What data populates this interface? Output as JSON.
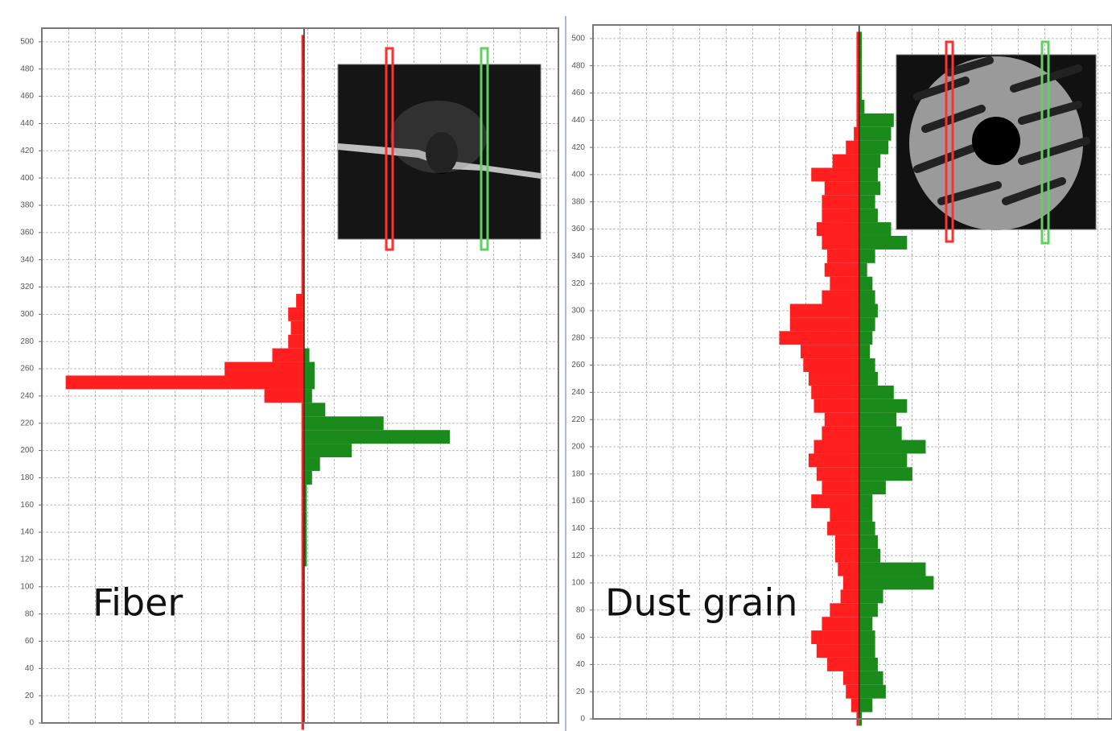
{
  "chart_data": [
    {
      "type": "bar",
      "orientation": "horizontal",
      "annotation": "Fiber",
      "y": [
        0,
        10,
        20,
        30,
        40,
        50,
        60,
        70,
        80,
        90,
        100,
        110,
        120,
        130,
        140,
        150,
        160,
        170,
        180,
        190,
        200,
        210,
        220,
        230,
        240,
        250,
        260,
        270,
        280,
        290,
        300,
        310,
        320,
        330,
        340,
        350,
        360,
        370,
        380,
        390,
        400,
        410,
        420,
        430,
        440,
        450,
        460,
        470,
        480,
        490,
        500
      ],
      "series": [
        {
          "color": "#ff1f1f",
          "values": [
            -0.1,
            -0.1,
            -0.1,
            -0.1,
            -0.1,
            -0.1,
            -0.1,
            -0.1,
            -0.1,
            -0.1,
            -0.1,
            -0.1,
            -0.1,
            -0.1,
            -0.1,
            -0.1,
            -0.1,
            -0.1,
            -0.1,
            -0.1,
            -0.1,
            -0.1,
            -0.1,
            -0.1,
            -1.5,
            -9.0,
            -3.0,
            -1.2,
            -0.6,
            -0.5,
            -0.6,
            -0.3,
            -0.1,
            -0.1,
            -0.1,
            -0.1,
            -0.1,
            -0.1,
            -0.1,
            -0.1,
            -0.1,
            -0.1,
            -0.1,
            -0.1,
            -0.1,
            -0.1,
            -0.1,
            -0.1,
            -0.1,
            -0.1,
            -0.1
          ]
        },
        {
          "color": "#1a8a1a",
          "values": [
            0,
            0,
            0,
            0,
            0,
            0,
            0,
            0,
            0,
            0,
            0,
            0,
            0.1,
            0.1,
            0.1,
            0.1,
            0.1,
            0.1,
            0.3,
            0.6,
            1.8,
            5.5,
            3.0,
            0.8,
            0.3,
            0.4,
            0.4,
            0.2,
            0,
            0,
            0,
            0,
            0,
            0,
            0,
            0,
            0,
            0,
            0,
            0,
            0,
            0,
            0,
            0,
            0,
            0,
            0,
            0,
            0,
            0,
            0
          ]
        }
      ],
      "xlim": [
        -9.9,
        9.6
      ],
      "ylim": [
        0,
        510
      ],
      "yticks": [
        0,
        20,
        40,
        60,
        80,
        100,
        120,
        140,
        160,
        180,
        200,
        220,
        240,
        260,
        280,
        300,
        320,
        340,
        360,
        380,
        400,
        420,
        440,
        460,
        480,
        500
      ],
      "grid": true
    },
    {
      "type": "bar",
      "orientation": "horizontal",
      "annotation": "Dust grain",
      "y": [
        0,
        10,
        20,
        30,
        40,
        50,
        60,
        70,
        80,
        90,
        100,
        110,
        120,
        130,
        140,
        150,
        160,
        170,
        180,
        190,
        200,
        210,
        220,
        230,
        240,
        250,
        260,
        270,
        280,
        290,
        300,
        310,
        320,
        330,
        340,
        350,
        360,
        370,
        380,
        390,
        400,
        410,
        420,
        430,
        440,
        450,
        460,
        470,
        480,
        490,
        500
      ],
      "series": [
        {
          "color": "#ff1f1f",
          "values": [
            -0.1,
            -0.3,
            -0.5,
            -0.6,
            -1.2,
            -1.6,
            -1.8,
            -1.4,
            -1.1,
            -0.7,
            -0.6,
            -0.8,
            -0.9,
            -0.9,
            -1.2,
            -1.1,
            -1.8,
            -1.4,
            -1.6,
            -1.9,
            -1.7,
            -1.4,
            -1.3,
            -1.7,
            -1.8,
            -1.9,
            -2.1,
            -2.2,
            -3.0,
            -2.6,
            -2.6,
            -1.4,
            -1.1,
            -1.3,
            -1.2,
            -1.4,
            -1.6,
            -1.4,
            -1.4,
            -1.3,
            -1.8,
            -1.0,
            -0.5,
            -0.2,
            -0.1,
            -0.1,
            -0.1,
            -0.1,
            -0.1,
            -0.1,
            -0.1
          ]
        },
        {
          "color": "#1a8a1a",
          "values": [
            0.1,
            0.5,
            1.0,
            0.9,
            0.7,
            0.6,
            0.6,
            0.5,
            0.7,
            0.9,
            2.8,
            2.5,
            0.8,
            0.7,
            0.6,
            0.5,
            0.5,
            1.0,
            2.0,
            1.8,
            2.5,
            1.6,
            1.4,
            1.8,
            1.3,
            0.7,
            0.6,
            0.4,
            0.5,
            0.6,
            0.7,
            0.6,
            0.5,
            0.3,
            0.6,
            1.8,
            1.2,
            0.7,
            0.6,
            0.8,
            0.7,
            0.8,
            1.1,
            1.2,
            1.3,
            0.2,
            0.1,
            0.1,
            0.1,
            0.1,
            0.1
          ]
        }
      ],
      "xlim": [
        -10,
        9.5
      ],
      "ylim": [
        0,
        510
      ],
      "yticks": [
        0,
        20,
        40,
        60,
        80,
        100,
        120,
        140,
        160,
        180,
        200,
        220,
        240,
        260,
        280,
        300,
        320,
        340,
        360,
        380,
        400,
        420,
        440,
        460,
        480,
        500
      ],
      "grid": true
    }
  ]
}
